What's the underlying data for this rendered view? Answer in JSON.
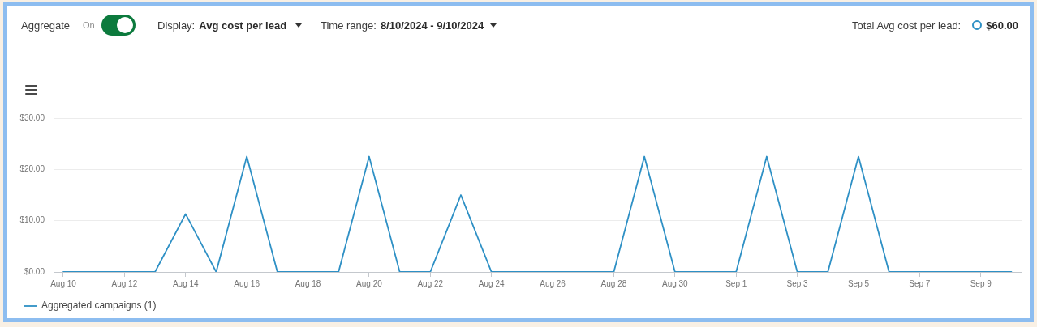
{
  "chart_data": {
    "type": "line",
    "annotations": [
      "Aggregate",
      "On",
      "Display:",
      "Avg cost per lead",
      "Time range:",
      "8/10/2024 - 9/10/2024",
      "Total Avg cost per lead:",
      "$60.00"
    ],
    "x": [
      "2024-08-10",
      "2024-08-11",
      "2024-08-12",
      "2024-08-13",
      "2024-08-14",
      "2024-08-15",
      "2024-08-16",
      "2024-08-17",
      "2024-08-18",
      "2024-08-19",
      "2024-08-20",
      "2024-08-21",
      "2024-08-22",
      "2024-08-23",
      "2024-08-24",
      "2024-08-25",
      "2024-08-26",
      "2024-08-27",
      "2024-08-28",
      "2024-08-29",
      "2024-08-30",
      "2024-08-31",
      "2024-09-01",
      "2024-09-02",
      "2024-09-03",
      "2024-09-04",
      "2024-09-05",
      "2024-09-06",
      "2024-09-07",
      "2024-09-08",
      "2024-09-09",
      "2024-09-10"
    ],
    "series": [
      {
        "name": "Aggregated campaigns (1)",
        "color": "#2e90c5",
        "values": [
          0,
          0,
          0,
          0,
          11.3,
          0,
          22.5,
          0,
          0,
          0,
          22.5,
          0,
          0,
          15,
          0,
          0,
          0,
          0,
          0,
          22.5,
          0,
          0,
          0,
          22.5,
          0,
          0,
          22.5,
          0,
          0,
          0,
          0,
          0
        ]
      }
    ],
    "xlim": [
      "2024-08-09T17:00",
      "2024-09-10T08:00"
    ],
    "xticks": [
      {
        "value": "2024-08-10",
        "label": "Aug 10"
      },
      {
        "value": "2024-08-12",
        "label": "Aug 12"
      },
      {
        "value": "2024-08-14",
        "label": "Aug 14"
      },
      {
        "value": "2024-08-16",
        "label": "Aug 16"
      },
      {
        "value": "2024-08-18",
        "label": "Aug 18"
      },
      {
        "value": "2024-08-20",
        "label": "Aug 20"
      },
      {
        "value": "2024-08-22",
        "label": "Aug 22"
      },
      {
        "value": "2024-08-24",
        "label": "Aug 24"
      },
      {
        "value": "2024-08-26",
        "label": "Aug 26"
      },
      {
        "value": "2024-08-28",
        "label": "Aug 28"
      },
      {
        "value": "2024-08-30",
        "label": "Aug 30"
      },
      {
        "value": "2024-09-01",
        "label": "Sep 1"
      },
      {
        "value": "2024-09-03",
        "label": "Sep 3"
      },
      {
        "value": "2024-09-05",
        "label": "Sep 5"
      },
      {
        "value": "2024-09-07",
        "label": "Sep 7"
      },
      {
        "value": "2024-09-09",
        "label": "Sep 9"
      }
    ],
    "ylim": [
      0,
      30
    ],
    "yticks": [
      {
        "value": 0,
        "label": "$0.00"
      },
      {
        "value": 10,
        "label": "$10.00"
      },
      {
        "value": 20,
        "label": "$20.00"
      },
      {
        "value": 30,
        "label": "$30.00"
      }
    ],
    "grid": "y",
    "legend": "bottom left",
    "marker": "none"
  }
}
